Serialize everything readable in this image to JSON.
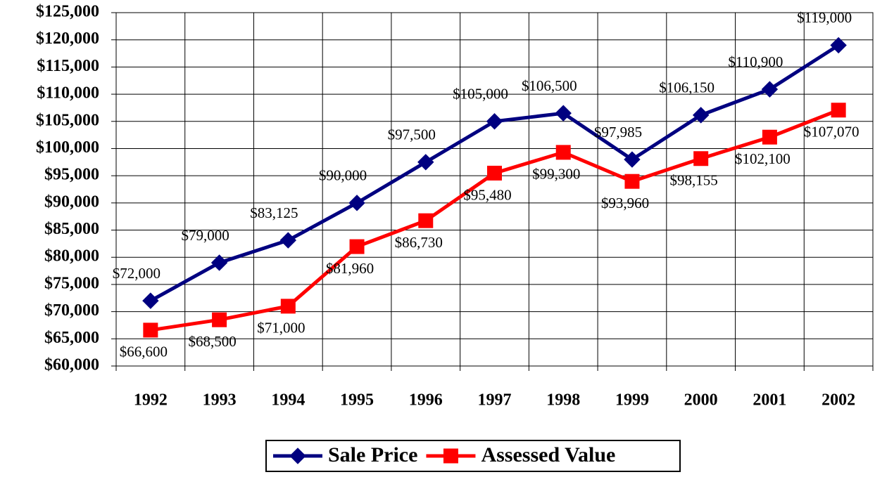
{
  "chart_data": {
    "type": "line",
    "categories": [
      "1992",
      "1993",
      "1994",
      "1995",
      "1996",
      "1997",
      "1998",
      "1999",
      "2000",
      "2001",
      "2002"
    ],
    "series": [
      {
        "name": "Sale Price",
        "color": "#000080",
        "marker": "diamond",
        "values": [
          72000,
          79000,
          83125,
          90000,
          97500,
          105000,
          106500,
          97985,
          106150,
          110900,
          119000
        ],
        "value_labels": [
          "$72,000",
          "$79,000",
          "$83,125",
          "$90,000",
          "$97,500",
          "$105,000",
          "$106,500",
          "$97,985",
          "$106,150",
          "$110,900",
          "$119,000"
        ]
      },
      {
        "name": "Assessed Value",
        "color": "#ff0000",
        "marker": "square",
        "values": [
          66600,
          68500,
          71000,
          81960,
          86730,
          95480,
          99300,
          93960,
          98155,
          102100,
          107070
        ],
        "value_labels": [
          "$66,600",
          "$68,500",
          "$71,000",
          "$81,960",
          "$86,730",
          "$95,480",
          "$99,300",
          "$93,960",
          "$98,155",
          "$102,100",
          "$107,070"
        ]
      }
    ],
    "ylim": [
      60000,
      125000
    ],
    "yticks": [
      {
        "value": 60000,
        "label": "$60,000"
      },
      {
        "value": 65000,
        "label": "$65,000"
      },
      {
        "value": 70000,
        "label": "$70,000"
      },
      {
        "value": 75000,
        "label": "$75,000"
      },
      {
        "value": 80000,
        "label": "$80,000"
      },
      {
        "value": 85000,
        "label": "$85,000"
      },
      {
        "value": 90000,
        "label": "$90,000"
      },
      {
        "value": 95000,
        "label": "$95,000"
      },
      {
        "value": 100000,
        "label": "$100,000"
      },
      {
        "value": 105000,
        "label": "$105,000"
      },
      {
        "value": 110000,
        "label": "$110,000"
      },
      {
        "value": 115000,
        "label": "$115,000"
      },
      {
        "value": 120000,
        "label": "$120,000"
      },
      {
        "value": 125000,
        "label": "$125,000"
      }
    ],
    "grid": true,
    "legend": "bottom"
  }
}
